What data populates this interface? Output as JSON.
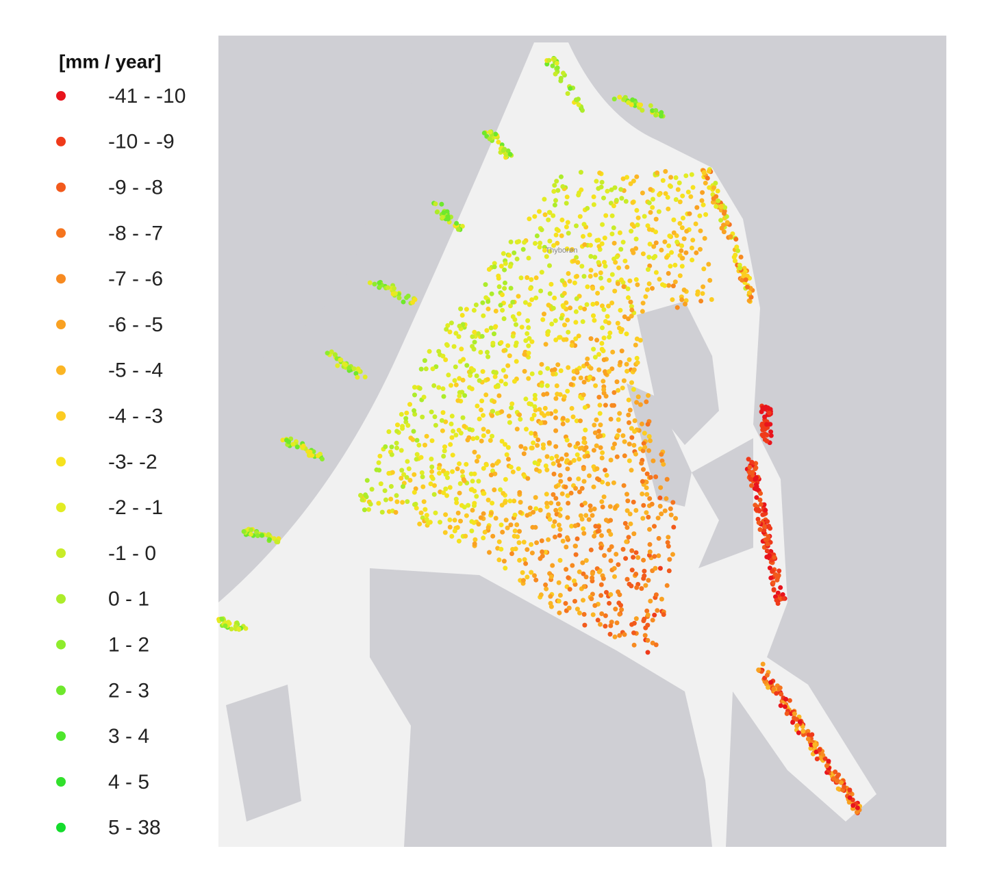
{
  "legend": {
    "title": "[mm / year]",
    "entries": [
      {
        "label": "-41 - -10",
        "color": "#e8141c"
      },
      {
        "label": "-10 - -9",
        "color": "#ef3a1a"
      },
      {
        "label": "-9 - -8",
        "color": "#f25a1c"
      },
      {
        "label": "-8 - -7",
        "color": "#f5741e"
      },
      {
        "label": "-7 - -6",
        "color": "#f78a20"
      },
      {
        "label": "-6 - -5",
        "color": "#f9a122"
      },
      {
        "label": "-5 - -4",
        "color": "#fbb524"
      },
      {
        "label": "-4 - -3",
        "color": "#fccc22"
      },
      {
        "label": "-3- -2",
        "color": "#f6e21e"
      },
      {
        "label": "-2 - -1",
        "color": "#e2ec24"
      },
      {
        "label": "-1 - 0",
        "color": "#c8ec28"
      },
      {
        "label": "0 - 1",
        "color": "#acec2a"
      },
      {
        "label": "1 - 2",
        "color": "#8eec2c"
      },
      {
        "label": "2 - 3",
        "color": "#6ee82c"
      },
      {
        "label": "3 - 4",
        "color": "#4ee62c"
      },
      {
        "label": "4 - 5",
        "color": "#32e02c"
      },
      {
        "label": "5 - 38",
        "color": "#14dc2c"
      }
    ]
  },
  "map": {
    "place_label": "Thyborøn"
  }
}
